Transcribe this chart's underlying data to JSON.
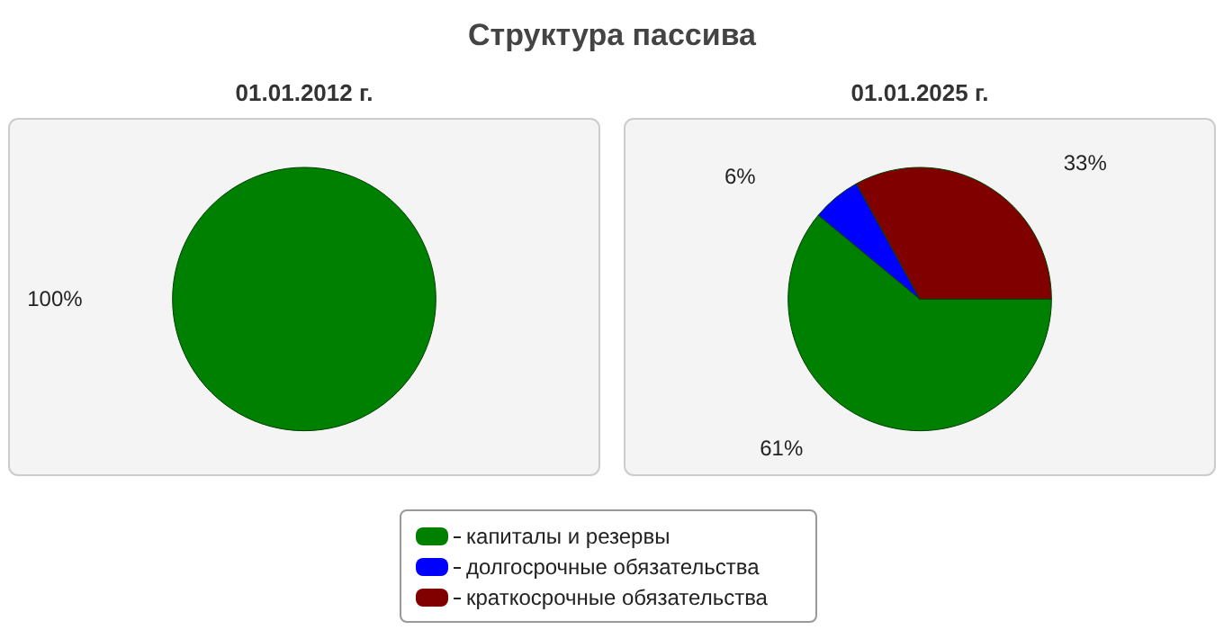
{
  "chart_data": [
    {
      "type": "pie",
      "title": "Структура пассива",
      "subtitle": "01.01.2012 г.",
      "categories": [
        null
      ],
      "values": [
        100
      ],
      "colors": [
        "#008000"
      ],
      "value_labels": [
        "100%"
      ]
    },
    {
      "type": "pie",
      "subtitle": "01.01.2025 г.",
      "categories": [
        "капиталы и резервы",
        "долгосрочные обязательства",
        "краткосрочные обязательства"
      ],
      "values": [
        61,
        6,
        33
      ],
      "colors": [
        "#008000",
        "#0000ff",
        "#800000"
      ],
      "value_labels": [
        "61%",
        "6%",
        "33%"
      ],
      "legend": "bottom"
    }
  ]
}
